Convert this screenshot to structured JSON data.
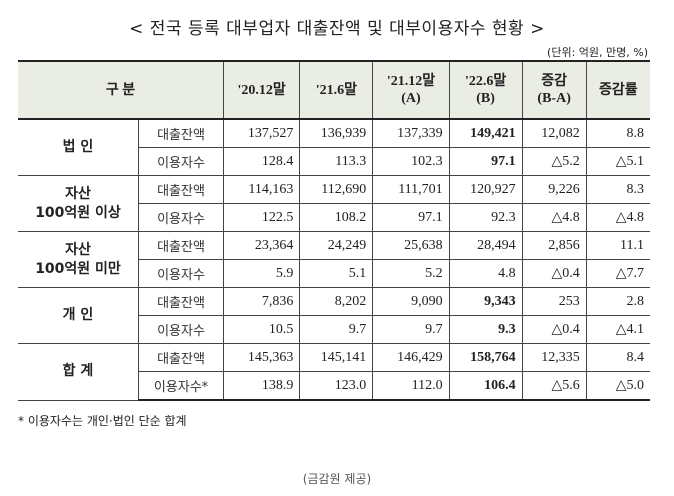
{
  "title": "< 전국 등록 대부업자 대출잔액 및 대부이용자수 현황 >",
  "unit": "(단위: 억원, 만명, %)",
  "table": {
    "header": [
      "구  분",
      "'20.12말",
      "'21.6말",
      "'21.12말\n(A)",
      "'22.6말\n(B)",
      "증감\n(B-A)",
      "증감률"
    ],
    "bold_column": 3,
    "groups": [
      {
        "name": "법  인",
        "rows": [
          {
            "label": "대출잔액",
            "values": [
              "137,527",
              "136,939",
              "137,339",
              "149,421",
              "12,082",
              "8.8"
            ],
            "bold": true
          },
          {
            "label": "이용자수",
            "values": [
              "128.4",
              "113.3",
              "102.3",
              "97.1",
              "△5.2",
              "△5.1"
            ],
            "bold": true
          }
        ]
      },
      {
        "name": "자산\n100억원 이상",
        "rows": [
          {
            "label": "대출잔액",
            "values": [
              "114,163",
              "112,690",
              "111,701",
              "120,927",
              "9,226",
              "8.3"
            ],
            "bold": false
          },
          {
            "label": "이용자수",
            "values": [
              "122.5",
              "108.2",
              "97.1",
              "92.3",
              "△4.8",
              "△4.8"
            ],
            "bold": false
          }
        ]
      },
      {
        "name": "자산\n100억원 미만",
        "rows": [
          {
            "label": "대출잔액",
            "values": [
              "23,364",
              "24,249",
              "25,638",
              "28,494",
              "2,856",
              "11.1"
            ],
            "bold": false
          },
          {
            "label": "이용자수",
            "values": [
              "5.9",
              "5.1",
              "5.2",
              "4.8",
              "△0.4",
              "△7.7"
            ],
            "bold": false
          }
        ]
      },
      {
        "name": "개  인",
        "rows": [
          {
            "label": "대출잔액",
            "values": [
              "7,836",
              "8,202",
              "9,090",
              "9,343",
              "253",
              "2.8"
            ],
            "bold": true
          },
          {
            "label": "이용자수",
            "values": [
              "10.5",
              "9.7",
              "9.7",
              "9.3",
              "△0.4",
              "△4.1"
            ],
            "bold": true
          }
        ]
      },
      {
        "name": "합  계",
        "rows": [
          {
            "label": "대출잔액",
            "values": [
              "145,363",
              "145,141",
              "146,429",
              "158,764",
              "12,335",
              "8.4"
            ],
            "bold": true
          },
          {
            "label": "이용자수*",
            "values": [
              "138.9",
              "123.0",
              "112.0",
              "106.4",
              "△5.6",
              "△5.0"
            ],
            "bold": true
          }
        ]
      }
    ]
  },
  "footnote": "* 이용자수는 개인·법인 단순 합계",
  "source": "(금감원 제공)"
}
